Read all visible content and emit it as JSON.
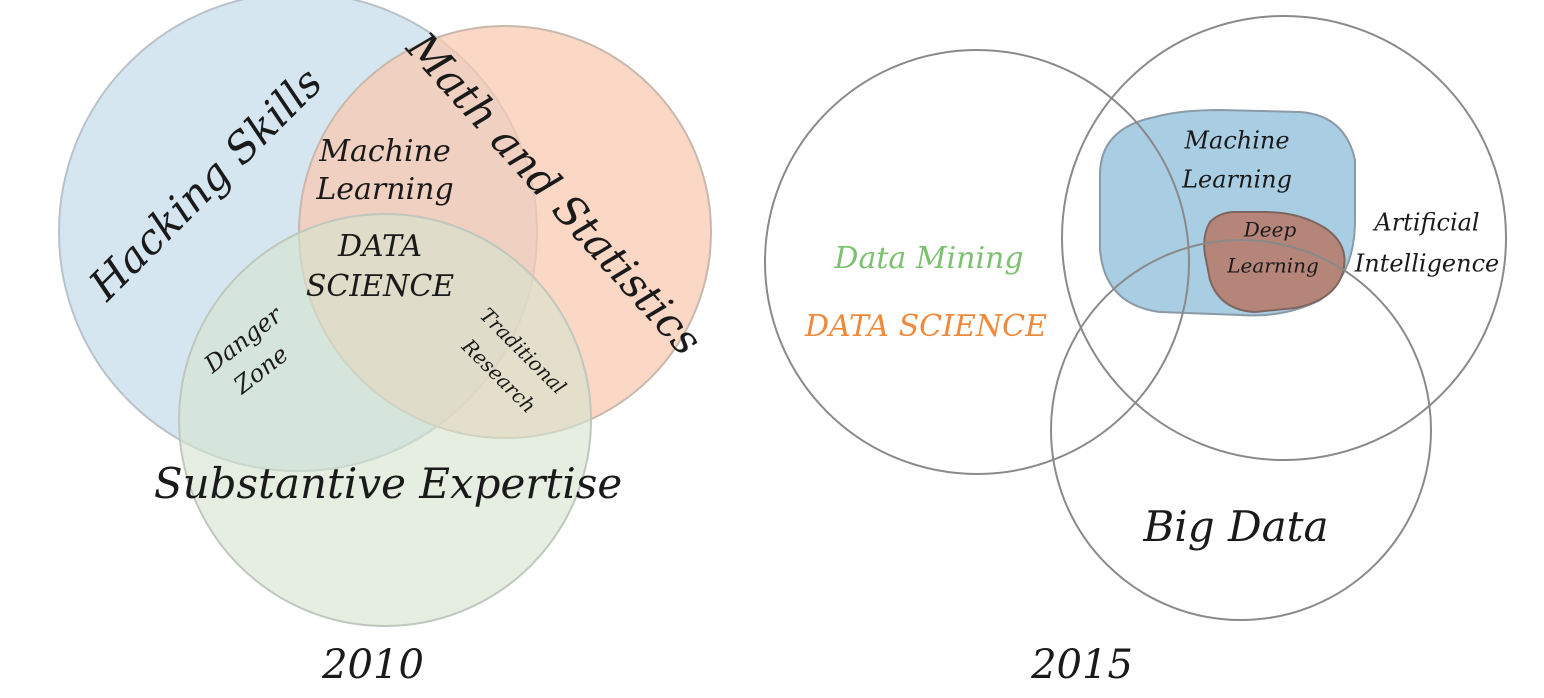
{
  "diagram_2010": {
    "circles": {
      "hacking": {
        "label": "Hacking Skills",
        "fill": "#cfe2ee"
      },
      "math": {
        "label": "Math and Statistics",
        "fill": "#f9c8ae"
      },
      "substantive": {
        "label": "Substantive Expertise",
        "fill": "#d5e3cf"
      }
    },
    "regions": {
      "machine_learning": {
        "line1": "Machine",
        "line2": "Learning"
      },
      "data_science": {
        "line1": "DATA",
        "line2": "SCIENCE"
      },
      "danger_zone": {
        "line1": "Danger",
        "line2": "Zone"
      },
      "traditional_research": {
        "line1": "Traditional",
        "line2": "Research"
      }
    },
    "year": "2010"
  },
  "diagram_2015": {
    "data_mining": {
      "label": "Data Mining",
      "color": "#7cc16f"
    },
    "data_science": {
      "label": "DATA SCIENCE",
      "color": "#ef8a3c"
    },
    "machine_learning": {
      "line1": "Machine",
      "line2": "Learning",
      "fill": "#a9cde2"
    },
    "deep_learning": {
      "line1": "Deep",
      "line2": "Learning",
      "fill": "#b6857a"
    },
    "artificial_intelligence": {
      "line1": "Artificial",
      "line2": "Intelligence"
    },
    "big_data": {
      "label": "Big Data"
    },
    "year": "2015"
  }
}
